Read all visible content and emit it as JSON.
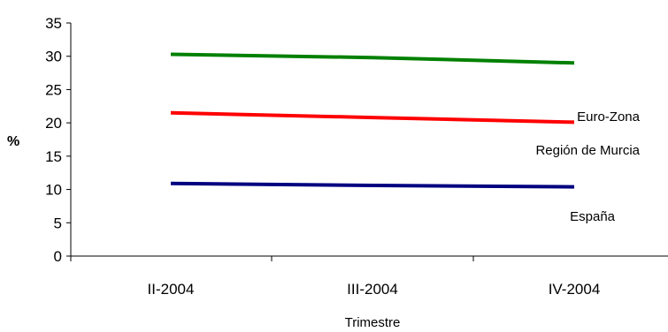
{
  "chart_data": {
    "type": "line",
    "title": "",
    "xlabel": "Trimestre",
    "ylabel": "%",
    "categories": [
      "II-2004",
      "III-2004",
      "IV-2004"
    ],
    "ylim": [
      0,
      35
    ],
    "yticks": [
      "0",
      "5",
      "10",
      "15",
      "20",
      "25",
      "30",
      "35"
    ],
    "grid": false,
    "legend": "inline labels at right",
    "series": [
      {
        "name": "Euro-Zona",
        "values": [
          30.3,
          29.8,
          29.0
        ],
        "color": "#008000"
      },
      {
        "name": "Región de Murcia",
        "values": [
          21.5,
          20.8,
          20.1
        ],
        "color": "#ff0000"
      },
      {
        "name": "España",
        "values": [
          10.9,
          10.6,
          10.4
        ],
        "color": "#000080"
      }
    ]
  }
}
